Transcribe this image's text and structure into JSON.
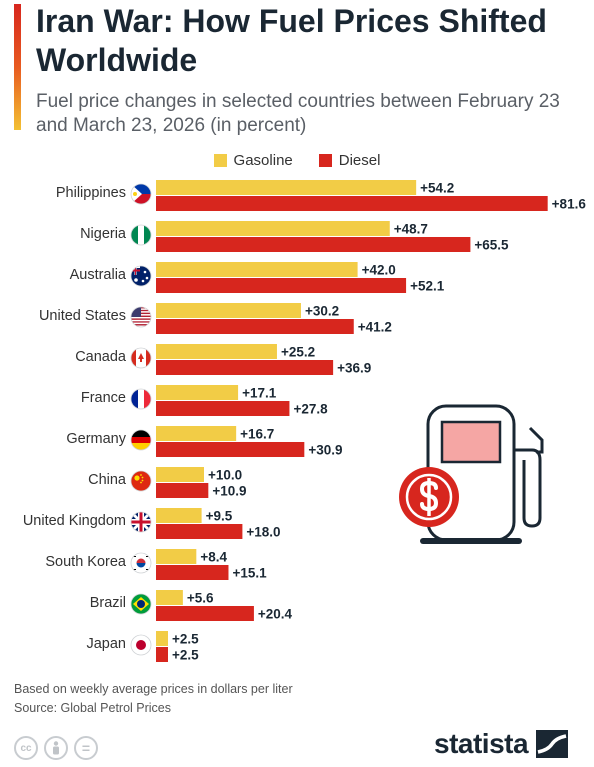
{
  "header": {
    "title": "Iran War: How Fuel Prices Shifted Worldwide",
    "subtitle": "Fuel price changes in selected countries between February 23 and March 23, 2026 (in percent)"
  },
  "legend": {
    "gasoline_label": "Gasoline",
    "diesel_label": "Diesel"
  },
  "colors": {
    "gasoline": "#f2cc46",
    "diesel": "#d7261e",
    "accent": "#d7261e"
  },
  "chart_data": {
    "type": "bar",
    "orientation": "horizontal",
    "title": "Iran War: How Fuel Prices Shifted Worldwide",
    "subtitle": "Fuel price changes in selected countries between February 23 and March 23, 2026 (in percent)",
    "categories": [
      "Philippines",
      "Nigeria",
      "Australia",
      "United States",
      "Canada",
      "France",
      "Germany",
      "China",
      "United Kingdom",
      "South Korea",
      "Brazil",
      "Japan"
    ],
    "series": [
      {
        "name": "Gasoline",
        "values": [
          54.2,
          48.7,
          42.0,
          30.2,
          25.2,
          17.1,
          16.7,
          10.0,
          9.5,
          8.4,
          5.6,
          2.5
        ]
      },
      {
        "name": "Diesel",
        "values": [
          81.6,
          65.5,
          52.1,
          41.2,
          36.9,
          27.8,
          30.9,
          10.9,
          18.0,
          15.1,
          20.4,
          2.5
        ]
      }
    ],
    "data_labels": {
      "Gasoline": [
        "+54.2",
        "+48.7",
        "+42.0",
        "+30.2",
        "+25.2",
        "+17.1",
        "+16.7",
        "+10.0",
        "+9.5",
        "+8.4",
        "+5.6",
        "+2.5"
      ],
      "Diesel": [
        "+81.6",
        "+65.5",
        "+52.1",
        "+41.2",
        "+36.9",
        "+27.8",
        "+30.9",
        "+10.9",
        "+18.0",
        "+15.1",
        "+20.4",
        "+2.5"
      ]
    },
    "xlim": [
      0,
      85
    ],
    "grid": false,
    "legend_position": "top-center"
  },
  "footer": {
    "note": "Based on weekly average prices in dollars per liter",
    "source": "Source: Global Petrol Prices",
    "brand": "statista"
  },
  "icons": {
    "fuel_pump": "fuel-pump-icon",
    "dollar": "dollar-icon",
    "license": [
      "cc-icon",
      "attribution-icon",
      "no-derivatives-icon"
    ],
    "cc_glyph": "cc",
    "nd_glyph": "="
  }
}
